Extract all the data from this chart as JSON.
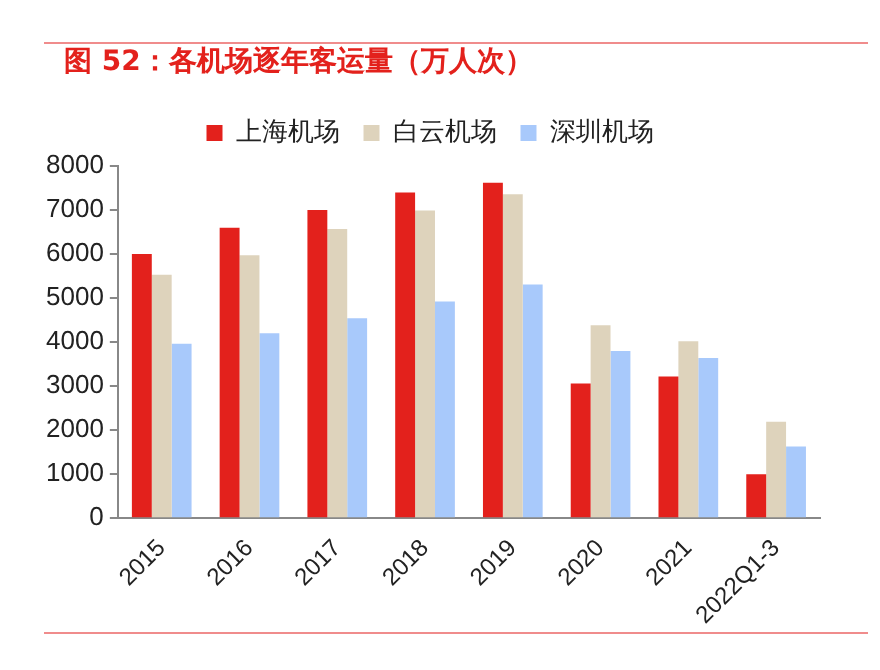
{
  "chart_data": {
    "type": "bar",
    "title": "图 52：各机场逐年客运量（万人次）",
    "categories": [
      "2015",
      "2016",
      "2017",
      "2018",
      "2019",
      "2020",
      "2021",
      "2022Q1-3"
    ],
    "series": [
      {
        "name": "上海机场",
        "color": "#e3211c",
        "values": [
          6000,
          6600,
          7000,
          7400,
          7620,
          3060,
          3220,
          1000
        ]
      },
      {
        "name": "白云机场",
        "color": "#ded3bc",
        "values": [
          5530,
          5970,
          6570,
          6990,
          7360,
          4380,
          4020,
          2190
        ]
      },
      {
        "name": "深圳机场",
        "color": "#a8c9fb",
        "values": [
          3960,
          4200,
          4540,
          4920,
          5310,
          3800,
          3640,
          1630
        ]
      }
    ],
    "ylim": [
      0,
      8000
    ],
    "yticks": [
      0,
      1000,
      2000,
      3000,
      4000,
      5000,
      6000,
      7000,
      8000
    ],
    "grid": false,
    "legend": "top"
  }
}
